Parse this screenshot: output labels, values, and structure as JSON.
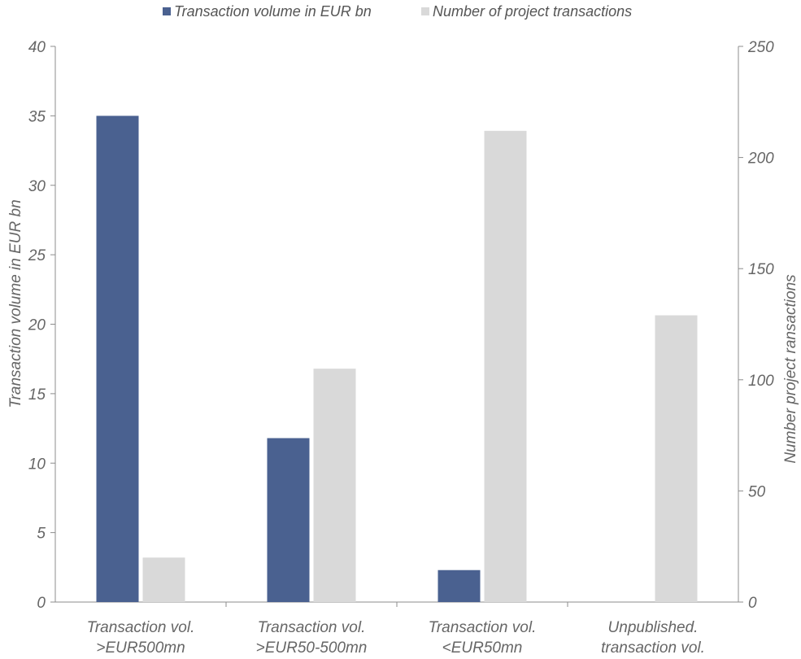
{
  "chart_data": {
    "type": "bar",
    "categories": [
      [
        "Transaction vol.",
        ">EUR500mn"
      ],
      [
        "Transaction vol.",
        ">EUR50-500mn"
      ],
      [
        "Transaction vol.",
        "<EUR50mn"
      ],
      [
        "Unpublished.",
        "transaction vol."
      ]
    ],
    "series": [
      {
        "name": "Transaction volume in EUR bn",
        "axis": "left",
        "color": "#4a6190",
        "values": [
          35,
          11.8,
          2.3,
          null
        ]
      },
      {
        "name": "Number of project transactions",
        "axis": "right",
        "color": "#d9d9d9",
        "values": [
          20,
          105,
          212,
          129
        ]
      }
    ],
    "y_left": {
      "label": "Transaction volume in  EUR bn",
      "ylim": [
        0,
        40
      ],
      "ticks": [
        0,
        5,
        10,
        15,
        20,
        25,
        30,
        35,
        40
      ]
    },
    "y_right": {
      "label": "Number project ransactions",
      "ylim": [
        0,
        250
      ],
      "ticks": [
        0,
        50,
        100,
        150,
        200,
        250
      ]
    },
    "legend_position": "top-center",
    "grid": false
  }
}
